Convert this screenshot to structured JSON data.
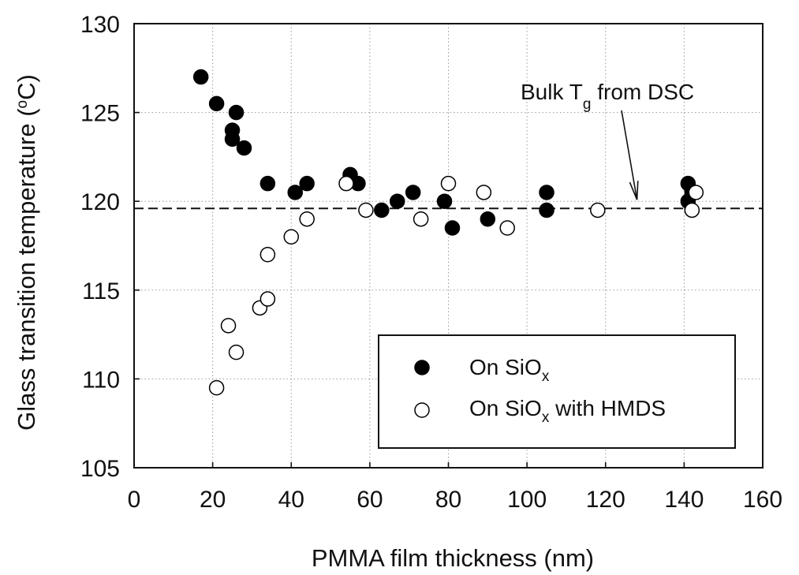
{
  "chart_data": {
    "type": "scatter",
    "xlabel": "PMMA film thickness (nm)",
    "ylabel_parts": {
      "pre": "Glass transition temperature (",
      "sup": "o",
      "post": "C)"
    },
    "xlim": [
      0,
      160
    ],
    "ylim": [
      105,
      130
    ],
    "xticks": [
      0,
      20,
      40,
      60,
      80,
      100,
      120,
      140,
      160
    ],
    "yticks": [
      105,
      110,
      115,
      120,
      125,
      130
    ],
    "grid": true,
    "legend_position": "bottom-right",
    "series": [
      {
        "name_parts": {
          "pre": "On SiO",
          "sub": "x",
          "post": ""
        },
        "marker": "filled-circle",
        "color": "#000000",
        "points": [
          [
            17,
            127
          ],
          [
            21,
            125.5
          ],
          [
            25,
            124
          ],
          [
            25,
            123.5
          ],
          [
            26,
            125
          ],
          [
            28,
            123
          ],
          [
            34,
            121
          ],
          [
            41,
            120.5
          ],
          [
            44,
            121
          ],
          [
            55,
            121.5
          ],
          [
            57,
            121
          ],
          [
            63,
            119.5
          ],
          [
            67,
            120
          ],
          [
            71,
            120.5
          ],
          [
            79,
            120
          ],
          [
            81,
            118.5
          ],
          [
            90,
            119
          ],
          [
            105,
            120.5
          ],
          [
            105,
            119.5
          ],
          [
            141,
            121
          ],
          [
            141,
            120
          ],
          [
            142,
            120.5
          ]
        ]
      },
      {
        "name_parts": {
          "pre": "On SiO",
          "sub": "x",
          "post": " with HMDS"
        },
        "marker": "open-circle",
        "color": "#000000",
        "points": [
          [
            21,
            109.5
          ],
          [
            24,
            113
          ],
          [
            26,
            111.5
          ],
          [
            32,
            114
          ],
          [
            34,
            114.5
          ],
          [
            34,
            117
          ],
          [
            40,
            118
          ],
          [
            44,
            119
          ],
          [
            54,
            121
          ],
          [
            59,
            119.5
          ],
          [
            73,
            119
          ],
          [
            80,
            121
          ],
          [
            89,
            120.5
          ],
          [
            95,
            118.5
          ],
          [
            118,
            119.5
          ],
          [
            142,
            119.5
          ],
          [
            143,
            120.5
          ]
        ]
      }
    ],
    "reference_line": {
      "y": 119.6,
      "style": "dashed"
    },
    "annotation": {
      "pre": "Bulk T",
      "sub": "g",
      "post": " from DSC",
      "arrow_to": [
        128,
        120
      ]
    }
  }
}
